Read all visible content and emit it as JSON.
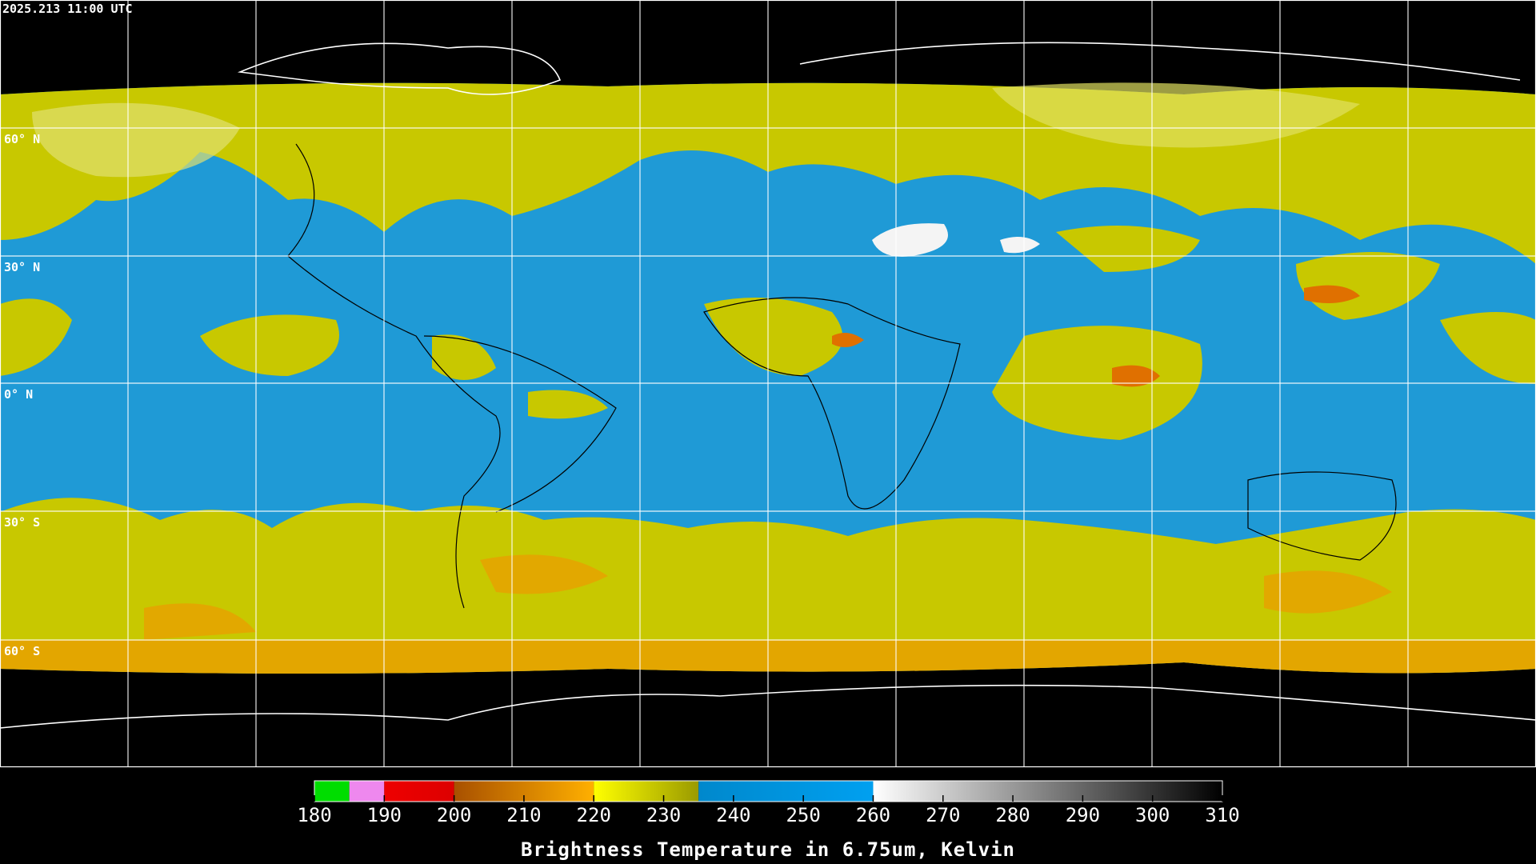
{
  "header": {
    "timestamp": "2025.213 11:00 UTC"
  },
  "map": {
    "latitude_labels": [
      "60° N",
      "30° N",
      "0° N",
      "30° S",
      "60° S"
    ]
  },
  "colorbar": {
    "title": "Brightness Temperature in 6.75um, Kelvin",
    "range": [
      180,
      310
    ],
    "ticks": [
      180,
      190,
      200,
      210,
      220,
      230,
      240,
      250,
      260,
      270,
      280,
      290,
      300,
      310
    ],
    "segments": [
      {
        "range": [
          180,
          185
        ],
        "colors": [
          "#00dd00",
          "#00dd00"
        ]
      },
      {
        "range": [
          185,
          190
        ],
        "colors": [
          "#ee88ee",
          "#ee88ee"
        ]
      },
      {
        "range": [
          190,
          200
        ],
        "colors": [
          "#ee0000",
          "#dd0000"
        ]
      },
      {
        "range": [
          200,
          220
        ],
        "colors": [
          "#a85000",
          "#ffb000"
        ]
      },
      {
        "range": [
          220,
          235
        ],
        "colors": [
          "#ffff00",
          "#9a9a00"
        ]
      },
      {
        "range": [
          235,
          260
        ],
        "colors": [
          "#0088cc",
          "#00a0f0"
        ]
      },
      {
        "range": [
          260,
          310
        ],
        "colors": [
          "#ffffff",
          "#000000"
        ]
      }
    ]
  }
}
